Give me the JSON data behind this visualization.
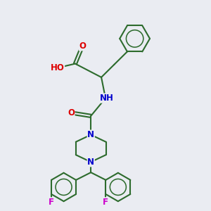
{
  "bg_color": "#eaecf2",
  "bond_color": "#2d6b2d",
  "bond_width": 1.5,
  "atom_colors": {
    "O": "#dd0000",
    "N": "#0000cc",
    "F": "#cc00cc",
    "C": "#2d6b2d"
  },
  "font_size_atom": 8.5,
  "xlim": [
    0,
    10
  ],
  "ylim": [
    0,
    10
  ]
}
